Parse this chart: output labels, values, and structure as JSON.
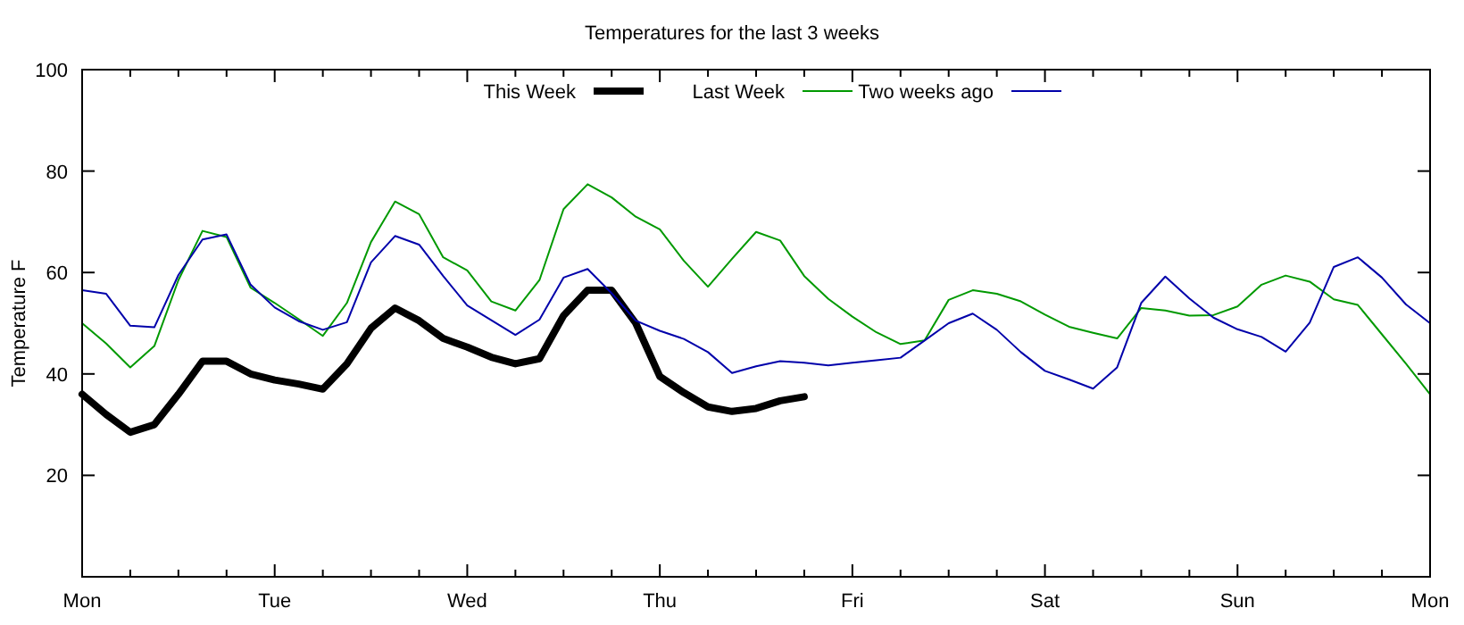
{
  "chart_data": {
    "type": "line",
    "title": "Temperatures for the last 3 weeks",
    "ylabel": "Temperature F",
    "categories": [
      "Mon",
      null,
      null,
      null,
      null,
      null,
      null,
      null,
      "Tue",
      null,
      null,
      null,
      null,
      null,
      null,
      null,
      "Wed",
      null,
      null,
      null,
      null,
      null,
      null,
      null,
      "Thu",
      null,
      null,
      null,
      null,
      null,
      null,
      null,
      "Fri",
      null,
      null,
      null,
      null,
      null,
      null,
      null,
      "Sat",
      null,
      null,
      null,
      null,
      null,
      null,
      null,
      "Sun",
      null,
      null,
      null,
      null,
      null,
      null,
      null,
      "Mon"
    ],
    "ylim": [
      0,
      100
    ],
    "yticks": [
      20,
      40,
      60,
      80,
      100
    ],
    "grid": false,
    "legend": "top",
    "line_style": "solid",
    "marker": "none",
    "series": [
      {
        "name": "This Week",
        "color": "#000000",
        "values": [
          36,
          32,
          28.5,
          30,
          36,
          42.5,
          42.5,
          40,
          38.8,
          38,
          37,
          42,
          49,
          53,
          50.5,
          47,
          45.3,
          43.3,
          42,
          43,
          51.5,
          56.5,
          56.5,
          50,
          39.5,
          36.3,
          33.5,
          32.6,
          33.2,
          34.7,
          35.5,
          null,
          null,
          null,
          null,
          null,
          null,
          null,
          null,
          null,
          null,
          null,
          null,
          null,
          null,
          null,
          null,
          null,
          null,
          null,
          null,
          null,
          null,
          null,
          null,
          null,
          null
        ]
      },
      {
        "name": "Last Week",
        "color": "#009900",
        "values": [
          50,
          46,
          41.3,
          45.5,
          58.5,
          68.2,
          67,
          57,
          54,
          50.8,
          47.5,
          54,
          66,
          74,
          71.5,
          63,
          60.4,
          54.3,
          52.5,
          58.5,
          72.5,
          77.4,
          74.8,
          71,
          68.5,
          62.3,
          57.2,
          62.7,
          68,
          66.3,
          59.3,
          54.8,
          51.3,
          48.2,
          45.9,
          46.6,
          54.6,
          56.5,
          55.8,
          54.3,
          51.7,
          49.3,
          48.1,
          47,
          53,
          52.5,
          51.5,
          51.6,
          53.3,
          57.6,
          59.4,
          58.2,
          54.7,
          53.6,
          47.8,
          42,
          36
        ]
      },
      {
        "name": "Two weeks ago",
        "color": "#0000aa",
        "values": [
          56.5,
          55.8,
          49.5,
          49.2,
          59.5,
          66.5,
          67.5,
          57.6,
          53.1,
          50.4,
          48.7,
          50.2,
          62,
          67.2,
          65.5,
          59.3,
          53.5,
          50.6,
          47.7,
          50.7,
          59,
          60.7,
          55.9,
          50.5,
          48.5,
          46.9,
          44.3,
          40.2,
          41.5,
          42.5,
          42.2,
          41.7,
          42.2,
          42.7,
          43.2,
          46.6,
          50,
          51.9,
          48.7,
          44.3,
          40.6,
          38.9,
          37.1,
          41.3,
          54,
          59.2,
          54.9,
          51.1,
          48.8,
          47.3,
          44.4,
          50.1,
          61.1,
          63,
          59,
          53.7,
          50
        ]
      }
    ]
  }
}
